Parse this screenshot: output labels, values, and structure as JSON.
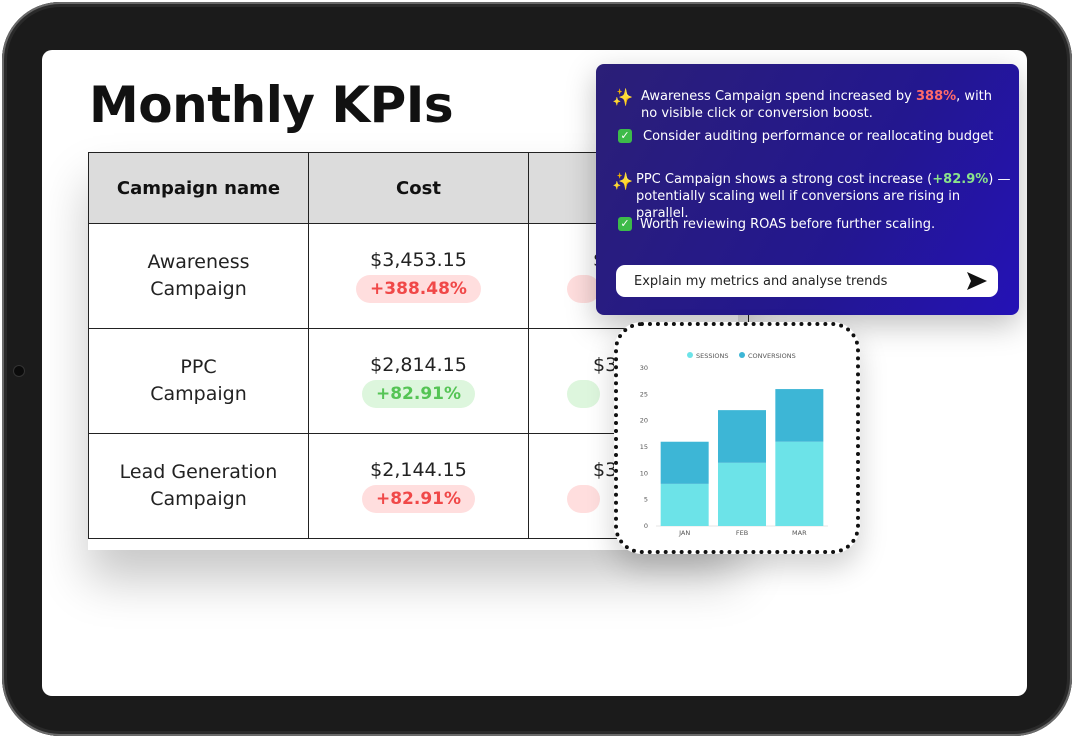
{
  "page": {
    "title": "Monthly KPIs"
  },
  "table": {
    "headers": [
      "Campaign name",
      "Cost",
      ""
    ],
    "rows": [
      {
        "name": "Awareness Campaign",
        "cost": "$3,453.15",
        "change": "+388.48%",
        "trend": "red",
        "next": "$",
        "next_trend": "red"
      },
      {
        "name": "PPC Campaign",
        "cost": "$2,814.15",
        "change": "+82.91%",
        "trend": "green",
        "next": "$3",
        "next_trend": "green"
      },
      {
        "name": "Lead Generation Campaign",
        "cost": "$2,144.15",
        "change": "+82.91%",
        "trend": "red",
        "next": "$3",
        "next_trend": "red"
      }
    ]
  },
  "ai_panel": {
    "insight1_pre": "Awareness Campaign spend increased by ",
    "insight1_highlight": "388%",
    "insight1_post": ", with no visible click or conversion boost.",
    "action1": "Consider auditing performance or reallocating budget",
    "insight2_pre": "PPC Campaign shows a strong cost increase (",
    "insight2_highlight": "+82.9%",
    "insight2_post": ") — potentially scaling well if conversions are rising in parallel.",
    "action2": "Worth reviewing ROAS before further scaling.",
    "ask_placeholder": "Explain my metrics and analyse trends",
    "icons": [
      "sparkle-icon",
      "check-icon",
      "send-icon"
    ]
  },
  "colors": {
    "panel_bg": "#23178f",
    "negative": "#f04848",
    "positive": "#55c455",
    "sessions": "#6ce3e8",
    "conversions": "#3db6d6"
  },
  "chart_data": {
    "type": "bar",
    "stacked": true,
    "categories": [
      "JAN",
      "FEB",
      "MAR"
    ],
    "series": [
      {
        "name": "SESSIONS",
        "values": [
          8,
          12,
          16
        ]
      },
      {
        "name": "CONVERSIONS",
        "values": [
          8,
          10,
          10
        ]
      }
    ],
    "ylim": [
      0,
      30
    ],
    "yticks": [
      0,
      5,
      10,
      15,
      20,
      25,
      30
    ],
    "grid": false,
    "legend": "top"
  }
}
